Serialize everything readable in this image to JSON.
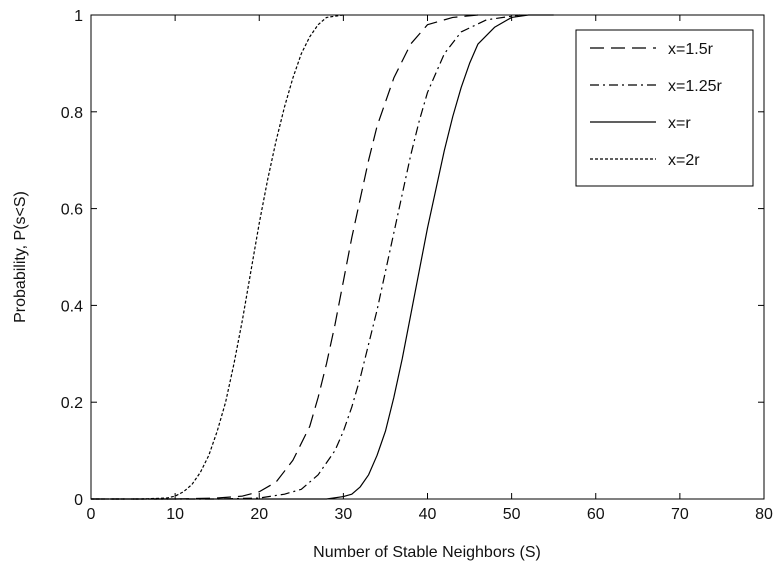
{
  "chart_data": {
    "type": "line",
    "title": "",
    "xlabel": "Number of Stable Neighbors (S)",
    "ylabel": "Probability, P(s<S)",
    "xlim": [
      0,
      80
    ],
    "ylim": [
      0,
      1
    ],
    "xticks": [
      "0",
      "10",
      "20",
      "30",
      "40",
      "50",
      "60",
      "70",
      "80"
    ],
    "yticks": [
      "0",
      "0.2",
      "0.4",
      "0.6",
      "0.8",
      "1"
    ],
    "grid": false,
    "legend_position": "top-right",
    "series": [
      {
        "name": "x=1.5r",
        "dash": "long-dash",
        "x": [
          0,
          10,
          15,
          18,
          20,
          22,
          24,
          26,
          27,
          28,
          29,
          30,
          31,
          32,
          33,
          34,
          36,
          38,
          40,
          43,
          46
        ],
        "y": [
          0,
          0,
          0.002,
          0.006,
          0.015,
          0.035,
          0.08,
          0.15,
          0.21,
          0.28,
          0.36,
          0.45,
          0.54,
          0.62,
          0.7,
          0.77,
          0.87,
          0.94,
          0.98,
          0.995,
          1
        ]
      },
      {
        "name": "x=1.25r",
        "dash": "dash-dot",
        "x": [
          0,
          15,
          20,
          23,
          25,
          27,
          29,
          30,
          31,
          32,
          33,
          34,
          35,
          36,
          37,
          38,
          39,
          40,
          42,
          44,
          47,
          51
        ],
        "y": [
          0,
          0,
          0.002,
          0.01,
          0.02,
          0.05,
          0.1,
          0.14,
          0.19,
          0.25,
          0.32,
          0.39,
          0.47,
          0.55,
          0.63,
          0.71,
          0.78,
          0.84,
          0.92,
          0.965,
          0.99,
          1
        ]
      },
      {
        "name": "x=r",
        "dash": "solid",
        "x": [
          0,
          20,
          28,
          30,
          31,
          32,
          33,
          34,
          35,
          36,
          37,
          38,
          39,
          40,
          41,
          42,
          43,
          44,
          45,
          46,
          48,
          50,
          52,
          55
        ],
        "y": [
          0,
          0,
          0,
          0.005,
          0.01,
          0.025,
          0.05,
          0.09,
          0.14,
          0.21,
          0.29,
          0.38,
          0.47,
          0.56,
          0.64,
          0.72,
          0.79,
          0.85,
          0.9,
          0.94,
          0.975,
          0.995,
          1,
          1
        ]
      },
      {
        "name": "x=2r",
        "dash": "dotted",
        "x": [
          0,
          6,
          9,
          10,
          11,
          12,
          13,
          14,
          15,
          16,
          17,
          18,
          19,
          20,
          21,
          22,
          23,
          24,
          25,
          26,
          27,
          28,
          30
        ],
        "y": [
          0,
          0,
          0.002,
          0.006,
          0.015,
          0.03,
          0.055,
          0.09,
          0.14,
          0.2,
          0.28,
          0.37,
          0.47,
          0.57,
          0.66,
          0.74,
          0.81,
          0.87,
          0.92,
          0.955,
          0.98,
          0.995,
          1
        ]
      }
    ]
  }
}
